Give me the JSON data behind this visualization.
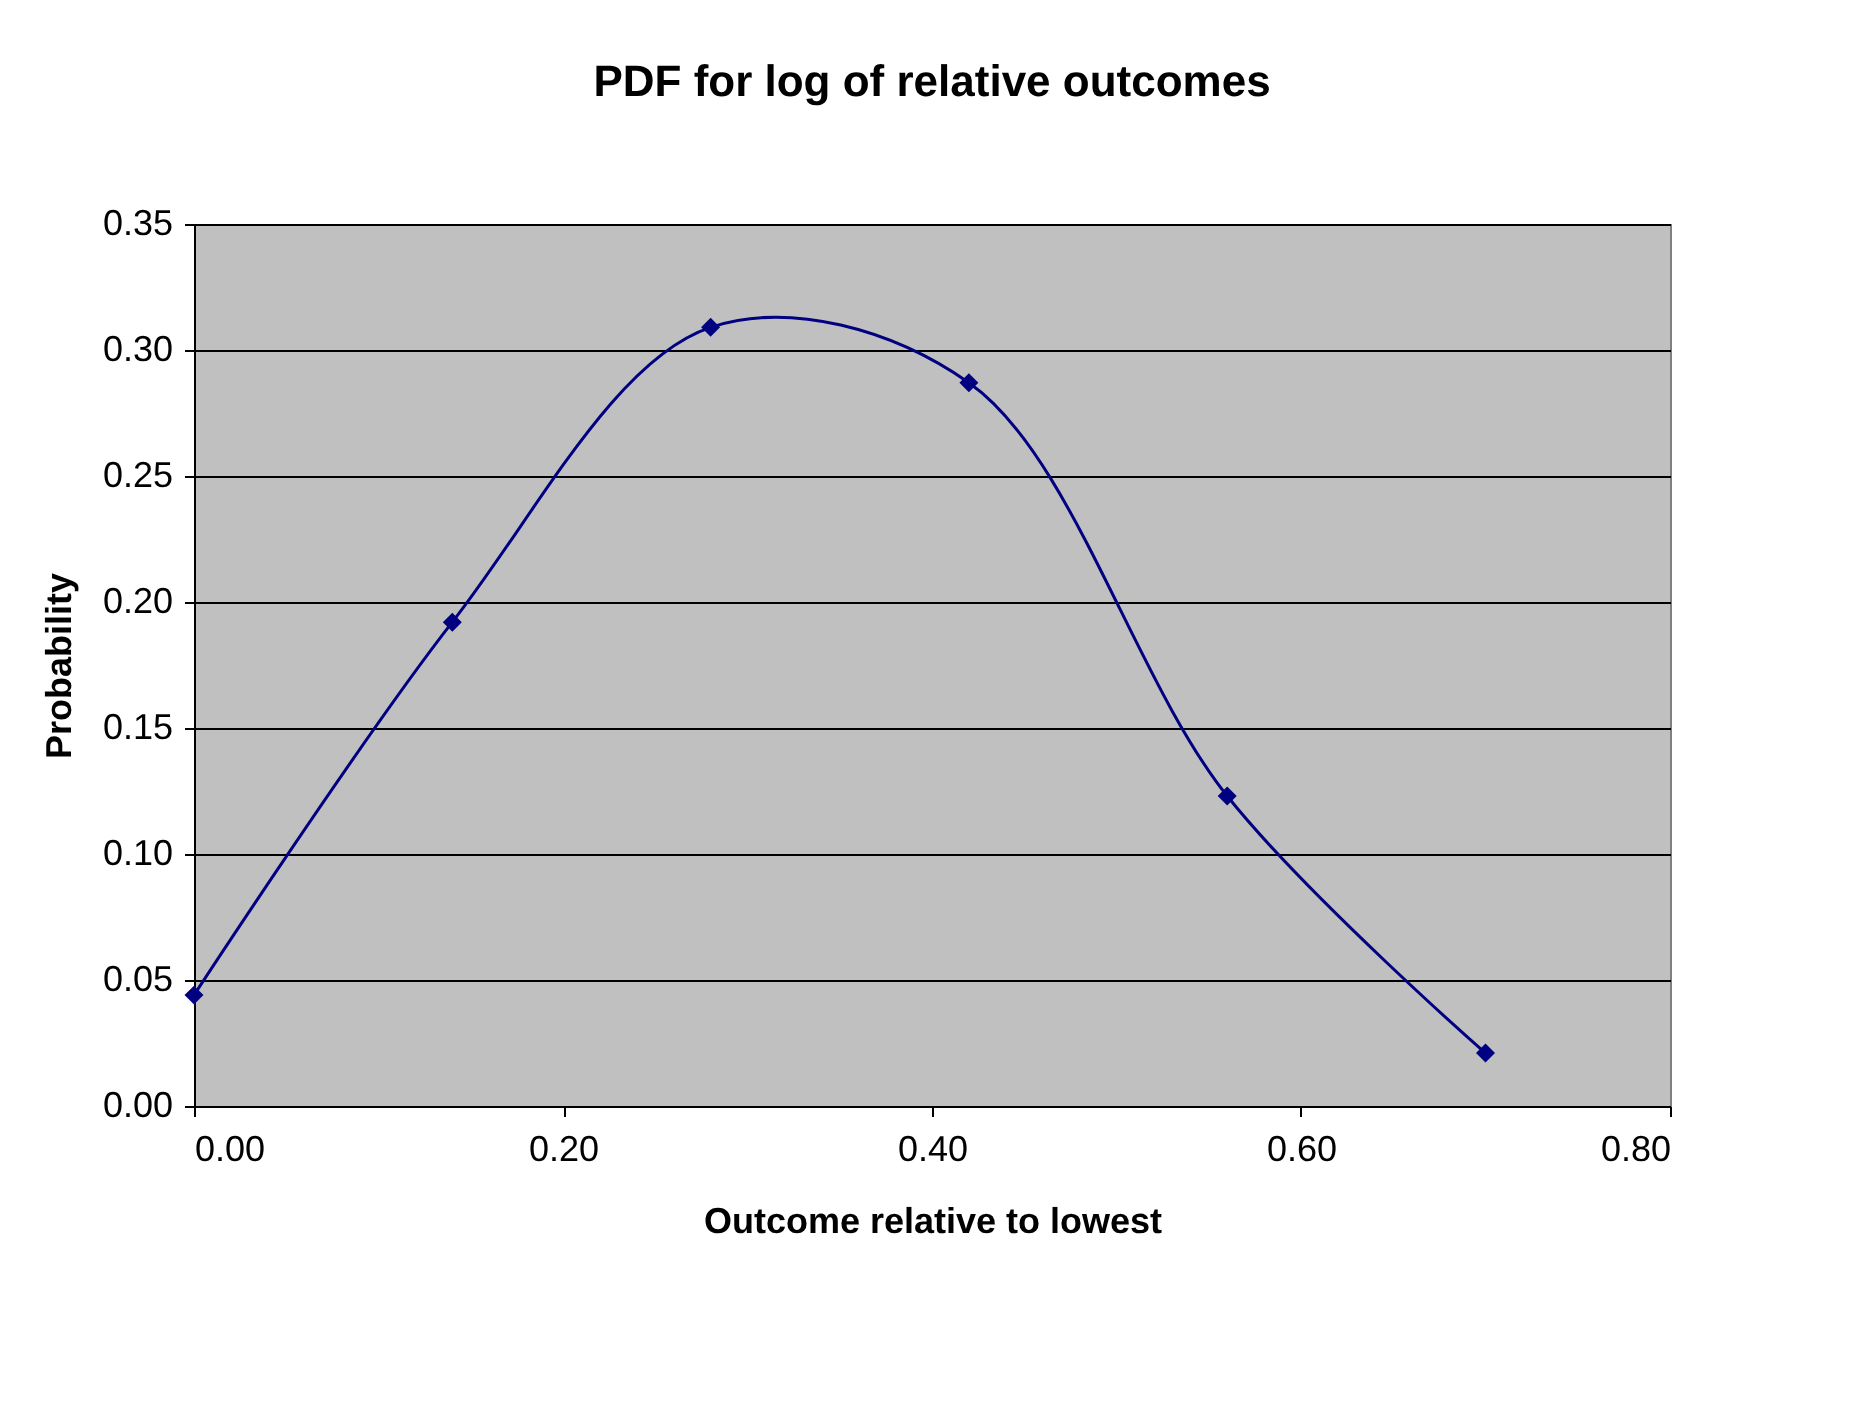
{
  "chart_data": {
    "type": "line",
    "title": "PDF for log of relative outcomes",
    "xlabel": "Outcome relative to lowest",
    "ylabel": "Probability",
    "x": [
      0.0,
      0.14,
      0.28,
      0.42,
      0.56,
      0.7
    ],
    "series": [
      {
        "color": "#000080",
        "values": [
          0.044,
          0.192,
          0.309,
          0.287,
          0.123,
          0.021
        ]
      }
    ],
    "xlim": [
      0,
      0.8
    ],
    "xticks": [
      {
        "value": 0,
        "label": "0.00"
      },
      {
        "value": 0.2,
        "label": "0.20"
      },
      {
        "value": 0.4,
        "label": "0.40"
      },
      {
        "value": 0.6,
        "label": "0.60"
      },
      {
        "value": 0.8,
        "label": "0.80"
      }
    ],
    "ylim": [
      0,
      0.35
    ],
    "yticks": [
      {
        "value": 0,
        "label": "0.00"
      },
      {
        "value": 0.05,
        "label": "0.05"
      },
      {
        "value": 0.1,
        "label": "0.10"
      },
      {
        "value": 0.15,
        "label": "0.15"
      },
      {
        "value": 0.2,
        "label": "0.20"
      },
      {
        "value": 0.25,
        "label": "0.25"
      },
      {
        "value": 0.3,
        "label": "0.30"
      },
      {
        "value": 0.35,
        "label": "0.35"
      }
    ],
    "grid": "y",
    "marker": "diamond",
    "line_style": "solid"
  }
}
